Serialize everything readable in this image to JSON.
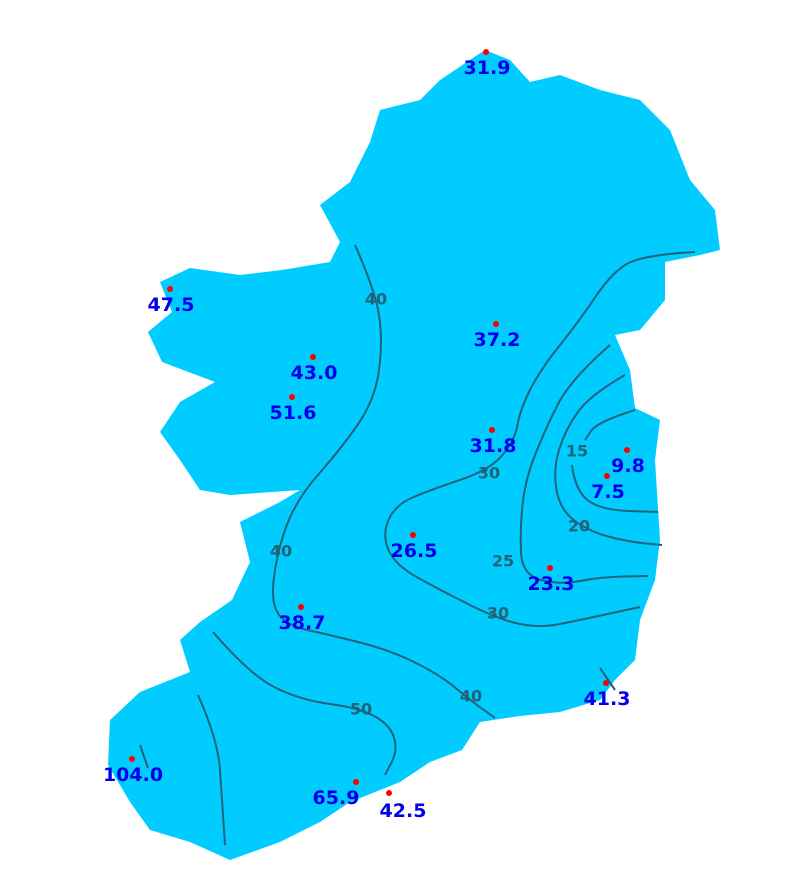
{
  "colors": {
    "land": "#00ccff",
    "contour": "#1f6378",
    "station_dot": "#ff0000",
    "station_label": "#0000ee",
    "contour_label": "#1f6378"
  },
  "stations": [
    "31.9",
    "47.5",
    "43.0",
    "51.6",
    "37.2",
    "31.8",
    "9.8",
    "7.5",
    "26.5",
    "23.3",
    "38.7",
    "41.3",
    "104.0",
    "65.9",
    "42.5"
  ],
  "contour_labels": [
    "40",
    "30",
    "15",
    "20",
    "40",
    "25",
    "30",
    "40",
    "50"
  ]
}
